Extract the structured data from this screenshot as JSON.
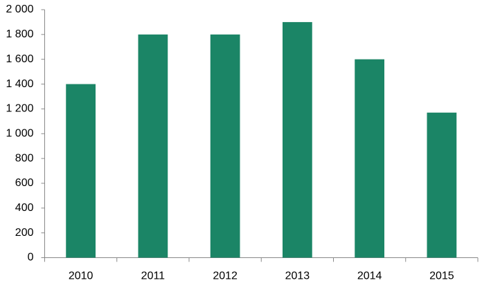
{
  "chart_data": {
    "type": "bar",
    "categories": [
      "2010",
      "2011",
      "2012",
      "2013",
      "2014",
      "2015"
    ],
    "values": [
      1400,
      1800,
      1800,
      1900,
      1600,
      1170
    ],
    "color": "#1b8566",
    "ylim": [
      0,
      2000
    ],
    "yticks": [
      0,
      200,
      400,
      600,
      800,
      {
        "value": 1000,
        "label": "1 000"
      },
      {
        "value": 1200,
        "label": "1 200"
      },
      {
        "value": 1400,
        "label": "1 400"
      },
      {
        "value": 1600,
        "label": "1 600"
      },
      {
        "value": 1800,
        "label": "1 800"
      },
      {
        "value": 2000,
        "label": "2 000"
      }
    ],
    "grid": false
  }
}
